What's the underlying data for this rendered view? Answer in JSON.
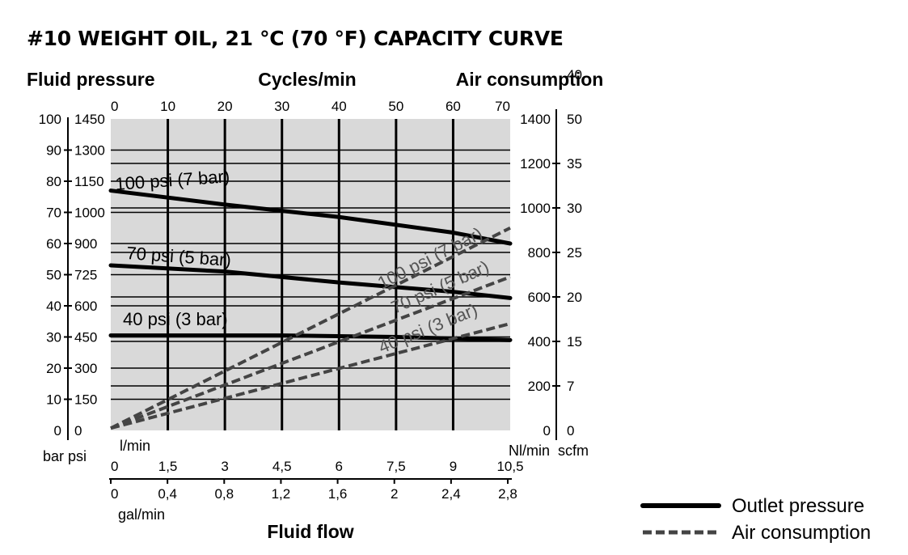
{
  "chart_data": {
    "type": "line",
    "title": "#10 WEIGHT OIL, 21 °C (70 °F) CAPACITY CURVE",
    "header_left": "Fluid pressure",
    "header_center": "Cycles/min",
    "header_right": "Air consumption",
    "xlabel": "Fluid flow",
    "x_range_lpm": [
      0,
      10.5
    ],
    "cycles_ticks": [
      "0",
      "10",
      "20",
      "30",
      "40",
      "50",
      "60",
      "70"
    ],
    "lmin_label": "l/min",
    "lmin_ticks": [
      "0",
      "1,5",
      "3",
      "4,5",
      "6",
      "7,5",
      "9",
      "10,5"
    ],
    "gal_label": "gal/min",
    "gal_ticks": [
      "0",
      "0,4",
      "0,8",
      "1,2",
      "1,6",
      "2",
      "2,4",
      "2,8"
    ],
    "left_unit_bar": "bar",
    "left_unit_psi": "psi",
    "y_range_bar": [
      0,
      100
    ],
    "bar_ticks": [
      "0",
      "10",
      "20",
      "30",
      "40",
      "50",
      "60",
      "70",
      "80",
      "90",
      "100"
    ],
    "psi_ticks": [
      "0",
      "150",
      "300",
      "450",
      "600",
      "725",
      "900",
      "1000",
      "1150",
      "1300",
      "1450"
    ],
    "right_unit_nlmin": "Nl/min",
    "right_unit_scfm": "scfm",
    "y2_range_nlmin": [
      0,
      1400
    ],
    "nlmin_ticks": [
      "0",
      "200",
      "400",
      "600",
      "800",
      "1000",
      "1200",
      "1400"
    ],
    "scfm_ticks": [
      "0",
      "7",
      "15",
      "20",
      "25",
      "30",
      "35",
      "40",
      "50"
    ],
    "series": [
      {
        "name": "100 psi (7 bar)",
        "kind": "outlet",
        "axis": "bar",
        "x": [
          0,
          3,
          6,
          9,
          10.5
        ],
        "y": [
          77,
          72.5,
          68.5,
          63.5,
          60
        ]
      },
      {
        "name": "70 psi (5 bar)",
        "kind": "outlet",
        "axis": "bar",
        "x": [
          0,
          3,
          6,
          9,
          10.5
        ],
        "y": [
          53,
          51,
          47.5,
          44.5,
          42.5
        ]
      },
      {
        "name": "40 psi (3 bar)",
        "kind": "outlet",
        "axis": "bar",
        "x": [
          0,
          4.5,
          7.5,
          10.5
        ],
        "y": [
          30.5,
          30.5,
          30,
          29
        ]
      },
      {
        "name": "100 psi (7 bar)",
        "kind": "air",
        "axis": "nlmin",
        "x": [
          0,
          10.5
        ],
        "y": [
          10,
          910
        ]
      },
      {
        "name": "70 psi (5 bar)",
        "kind": "air",
        "axis": "nlmin",
        "x": [
          0,
          10.5
        ],
        "y": [
          10,
          690
        ]
      },
      {
        "name": "40 psi (3 bar)",
        "kind": "air",
        "axis": "nlmin",
        "x": [
          0,
          10.5
        ],
        "y": [
          10,
          480
        ]
      }
    ],
    "legend": {
      "outlet": "Outlet pressure",
      "air": "Air consumption",
      "position": "bottom-right"
    },
    "colors": {
      "plot_bg": "#d9d9d9",
      "outlet_line": "#000000",
      "air_line": "#444444"
    }
  }
}
